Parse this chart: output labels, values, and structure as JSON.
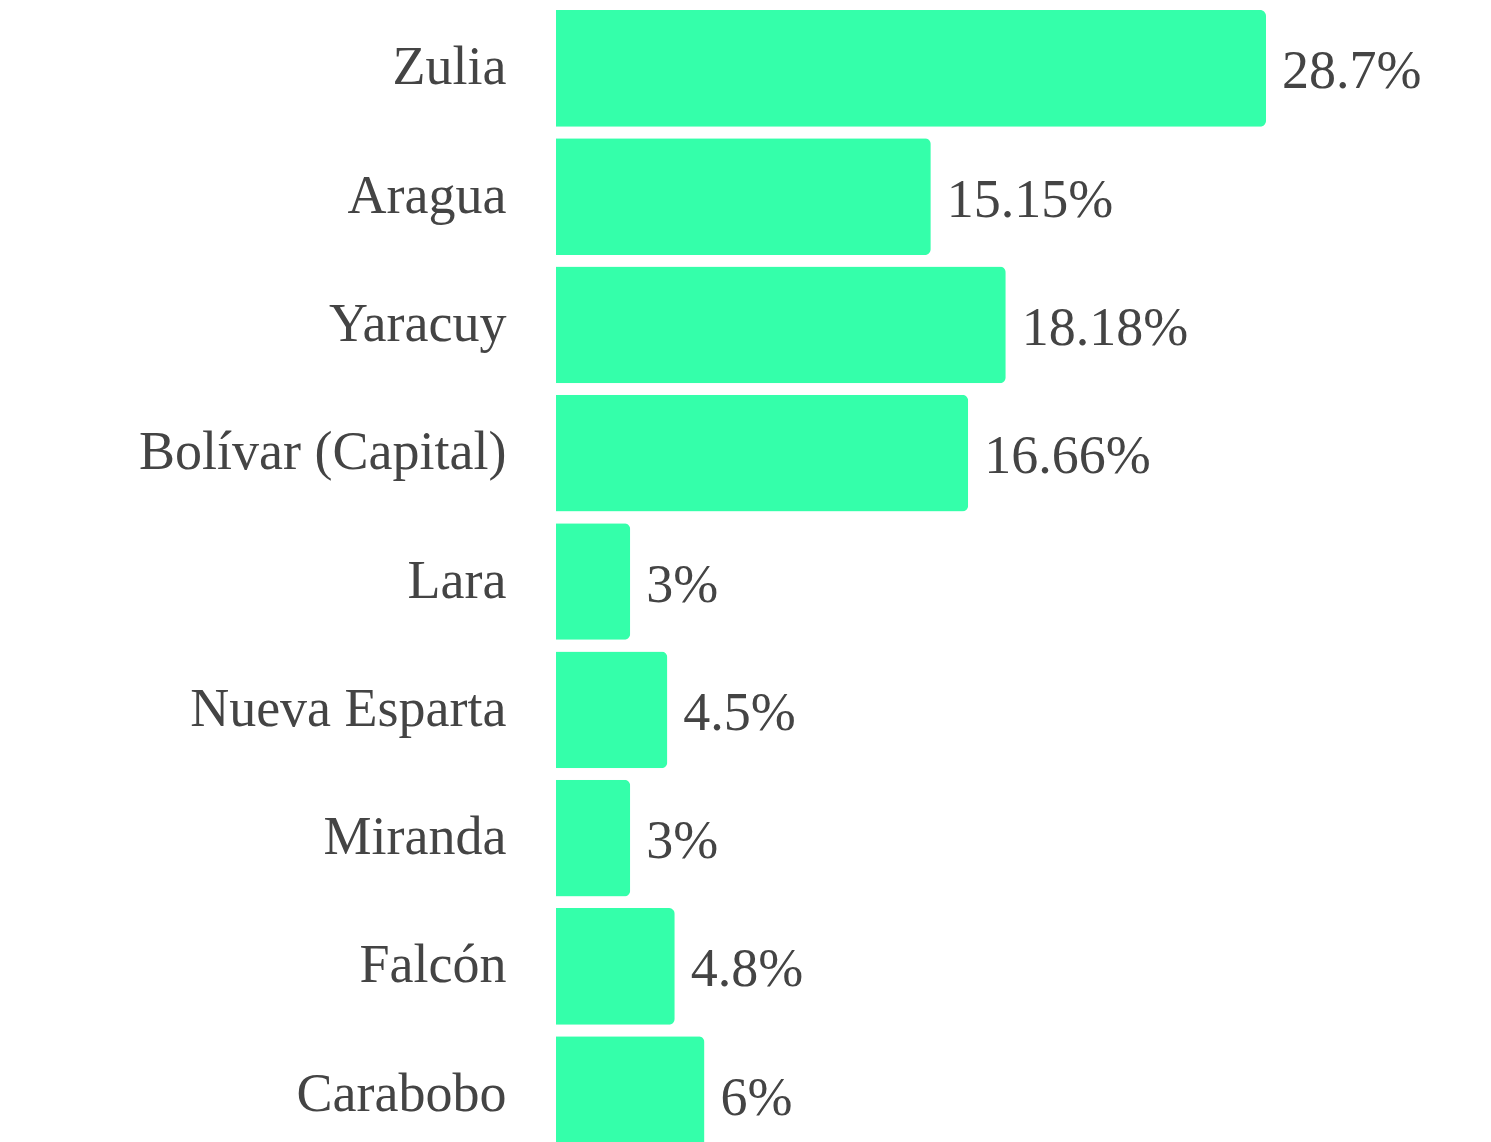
{
  "chart_data": {
    "type": "bar",
    "orientation": "horizontal",
    "categories": [
      "Zulia",
      "Aragua",
      "Yaracuy",
      "Bolívar (Capital)",
      "Lara",
      "Nueva Esparta",
      "Miranda",
      "Falcón",
      "Carabobo"
    ],
    "values": [
      28.7,
      15.15,
      18.18,
      16.66,
      3,
      4.5,
      3,
      4.8,
      6
    ],
    "value_labels": [
      "28.7%",
      "15.15%",
      "18.18%",
      "16.66%",
      "3%",
      "4.5%",
      "3%",
      "4.8%",
      "6%"
    ],
    "color": "#34ffaa"
  }
}
